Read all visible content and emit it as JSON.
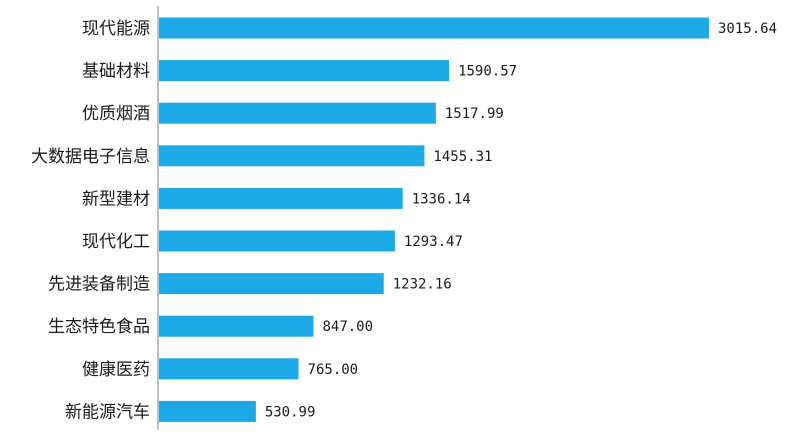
{
  "chart_data": {
    "type": "bar",
    "orientation": "horizontal",
    "categories": [
      "现代能源",
      "基础材料",
      "优质烟酒",
      "大数据电子信息",
      "新型建材",
      "现代化工",
      "先进装备制造",
      "生态特色食品",
      "健康医药",
      "新能源汽车"
    ],
    "values": [
      3015.64,
      1590.57,
      1517.99,
      1455.31,
      1336.14,
      1293.47,
      1232.16,
      847.0,
      765.0,
      530.99
    ],
    "value_labels": [
      "3015.64",
      "1590.57",
      "1517.99",
      "1455.31",
      "1336.14",
      "1293.47",
      "1232.16",
      "847.00",
      "765.00",
      "530.99"
    ],
    "title": "",
    "xlabel": "",
    "ylabel": "",
    "xlim": [
      0,
      3015.64
    ],
    "grid": false,
    "legend": "none",
    "bar_color": "#1CA9E6"
  }
}
